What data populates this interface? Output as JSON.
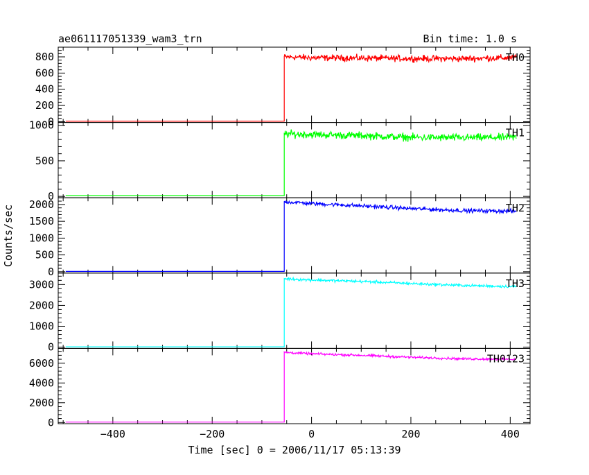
{
  "header": {
    "title": "ae061117051339_wam3_trn",
    "bin_time": "Bin time: 1.0 s"
  },
  "chart_data": {
    "type": "line",
    "xlabel": "Time [sec] 0 = 2006/11/17 05:13:39",
    "ylabel": "Counts/sec",
    "xlim": [
      -510,
      440
    ],
    "xticks": [
      -400,
      -200,
      0,
      200,
      400
    ],
    "xtick_labels": [
      "−400",
      "−200",
      "0",
      "200",
      "400"
    ],
    "onset_time": -55,
    "panels": [
      {
        "name": "TH0",
        "color": "#ff0000",
        "ylim": [
          -10,
          920
        ],
        "yticks": [
          0,
          200,
          400,
          600,
          800
        ],
        "ytick_labels": [
          "0",
          "200",
          "400",
          "600",
          "800"
        ],
        "baseline": 5,
        "points": [
          [
            -55,
            800
          ],
          [
            0,
            790
          ],
          [
            100,
            785
          ],
          [
            200,
            780
          ],
          [
            300,
            778
          ],
          [
            410,
            790
          ]
        ],
        "noise": 30
      },
      {
        "name": "TH1",
        "color": "#00ff00",
        "ylim": [
          -20,
          1040
        ],
        "yticks": [
          0,
          500,
          1000
        ],
        "ytick_labels": [
          "0",
          "500",
          "1000"
        ],
        "baseline": 10,
        "points": [
          [
            -55,
            880
          ],
          [
            0,
            870
          ],
          [
            100,
            855
          ],
          [
            200,
            830
          ],
          [
            300,
            825
          ],
          [
            410,
            830
          ]
        ],
        "noise": 40
      },
      {
        "name": "TH2",
        "color": "#0000ff",
        "ylim": [
          -40,
          2200
        ],
        "yticks": [
          0,
          500,
          1000,
          1500,
          2000
        ],
        "ytick_labels": [
          "0",
          "500",
          "1000",
          "1500",
          "2000"
        ],
        "baseline": 10,
        "points": [
          [
            -55,
            2080
          ],
          [
            0,
            2030
          ],
          [
            100,
            1960
          ],
          [
            200,
            1880
          ],
          [
            300,
            1820
          ],
          [
            410,
            1800
          ]
        ],
        "noise": 45
      },
      {
        "name": "TH3",
        "color": "#00ffff",
        "ylim": [
          -60,
          3550
        ],
        "yticks": [
          0,
          1000,
          2000,
          3000
        ],
        "ytick_labels": [
          "0",
          "1000",
          "2000",
          "3000"
        ],
        "baseline": 15,
        "points": [
          [
            -55,
            3280
          ],
          [
            0,
            3220
          ],
          [
            100,
            3150
          ],
          [
            200,
            3050
          ],
          [
            300,
            2960
          ],
          [
            410,
            2900
          ]
        ],
        "noise": 50
      },
      {
        "name": "TH0123",
        "color": "#ff00ff",
        "ylim": [
          -120,
          7500
        ],
        "yticks": [
          0,
          2000,
          4000,
          6000
        ],
        "ytick_labels": [
          "0",
          "2000",
          "4000",
          "6000"
        ],
        "baseline": 40,
        "points": [
          [
            -55,
            7100
          ],
          [
            0,
            6950
          ],
          [
            100,
            6800
          ],
          [
            200,
            6600
          ],
          [
            300,
            6450
          ],
          [
            410,
            6400
          ]
        ],
        "noise": 90
      }
    ]
  }
}
